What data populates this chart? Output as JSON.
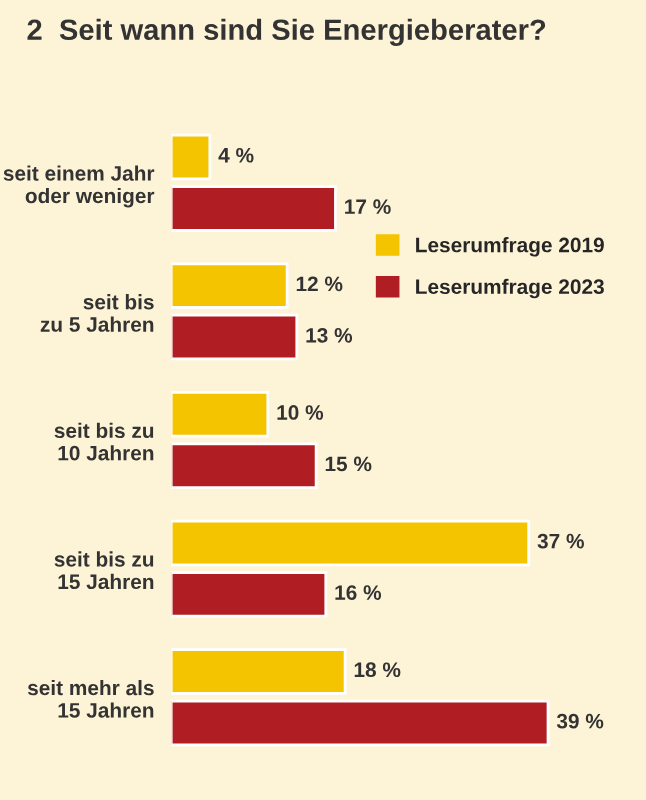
{
  "chart_data": {
    "type": "bar",
    "orientation": "horizontal",
    "title": "2  Seit wann sind Sie Energieberater?",
    "categories": [
      "seit einem Jahr\noder weniger",
      "seit bis\nzu 5 Jahren",
      "seit bis zu\n10 Jahren",
      "seit bis zu\n15 Jahren",
      "seit mehr als\n15 Jahren"
    ],
    "series": [
      {
        "name": "Leserumfrage 2019",
        "color": "#f5c400",
        "values": [
          4,
          12,
          10,
          37,
          18
        ],
        "value_labels": [
          "4 %",
          "12 %",
          "10 %",
          "37 %",
          "18 %"
        ]
      },
      {
        "name": "Leserumfrage 2023",
        "color": "#b01e23",
        "values": [
          17,
          13,
          15,
          16,
          39
        ],
        "value_labels": [
          "17 %",
          "13 %",
          "15 %",
          "16 %",
          "39 %"
        ]
      }
    ],
    "legend": "right",
    "grid": false
  }
}
